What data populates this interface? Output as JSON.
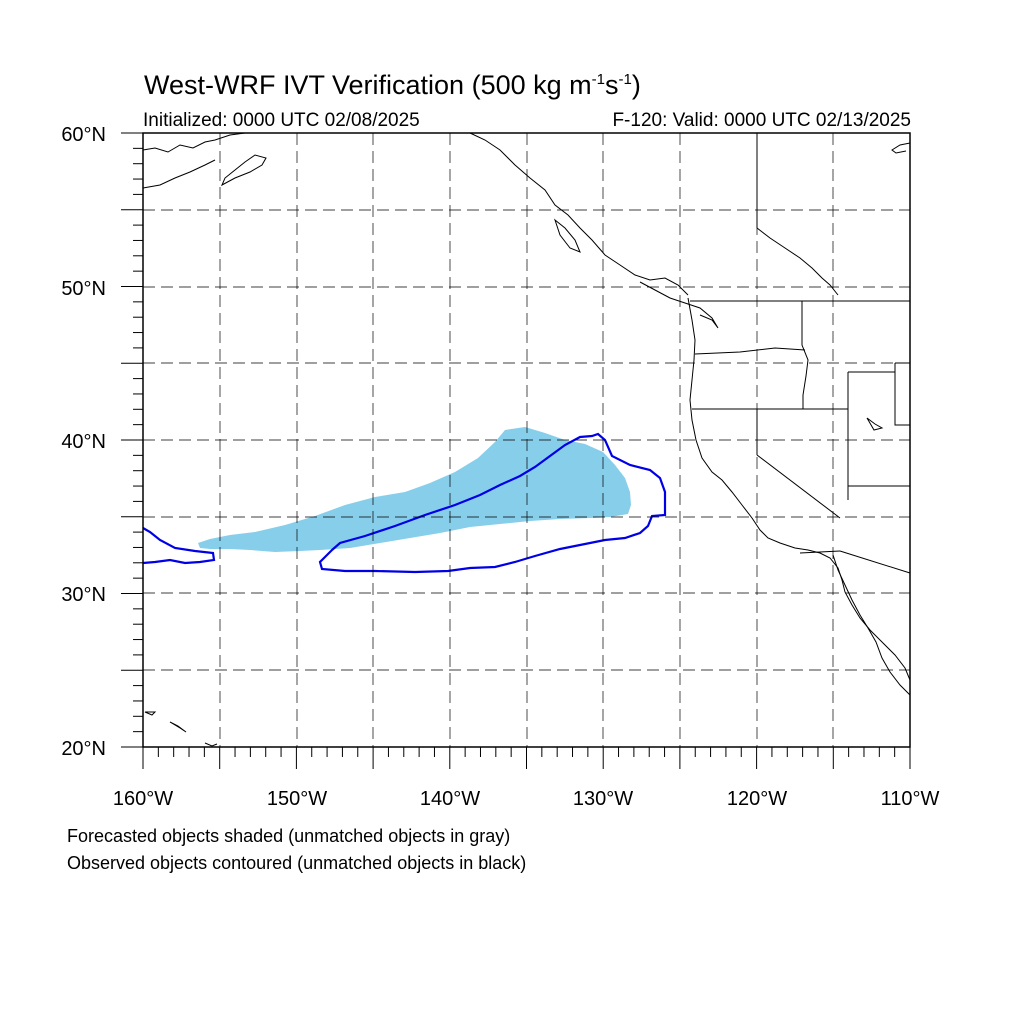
{
  "title": {
    "main": "West-WRF IVT Verification (500 kg m",
    "sup1": "-1",
    "mid": "s",
    "sup2": "-1",
    "end": ")"
  },
  "subtitle_left": "Initialized: 0000 UTC 02/08/2025",
  "subtitle_right": "F-120: Valid: 0000 UTC 02/13/2025",
  "lat_labels": [
    "60°N",
    "50°N",
    "40°N",
    "30°N",
    "20°N"
  ],
  "lon_labels": [
    "160°W",
    "150°W",
    "140°W",
    "130°W",
    "120°W",
    "110°W"
  ],
  "notes": [
    "Forecasted objects shaded (unmatched objects in gray)",
    "Observed objects contoured (unmatched objects in black)"
  ],
  "colors": {
    "forecast_fill": "#87ceeb",
    "observed_contour": "#0000e6",
    "coastline": "#000000",
    "grid": "#000000"
  }
}
